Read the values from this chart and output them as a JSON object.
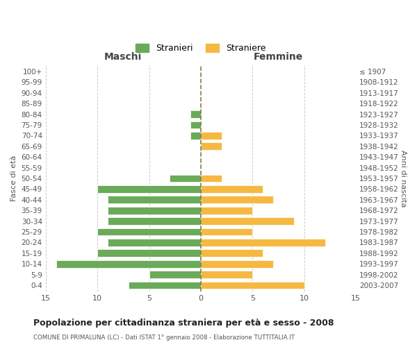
{
  "age_groups": [
    "100+",
    "95-99",
    "90-94",
    "85-89",
    "80-84",
    "75-79",
    "70-74",
    "65-69",
    "60-64",
    "55-59",
    "50-54",
    "45-49",
    "40-44",
    "35-39",
    "30-34",
    "25-29",
    "20-24",
    "15-19",
    "10-14",
    "5-9",
    "0-4"
  ],
  "birth_years": [
    "≤ 1907",
    "1908-1912",
    "1913-1917",
    "1918-1922",
    "1923-1927",
    "1928-1932",
    "1933-1937",
    "1938-1942",
    "1943-1947",
    "1948-1952",
    "1953-1957",
    "1958-1962",
    "1963-1967",
    "1968-1972",
    "1973-1977",
    "1978-1982",
    "1983-1987",
    "1988-1992",
    "1993-1997",
    "1998-2002",
    "2003-2007"
  ],
  "maschi": [
    0,
    0,
    0,
    0,
    1,
    1,
    1,
    0,
    0,
    0,
    3,
    10,
    9,
    9,
    9,
    10,
    9,
    10,
    14,
    5,
    7
  ],
  "femmine": [
    0,
    0,
    0,
    0,
    0,
    0,
    2,
    2,
    0,
    0,
    2,
    6,
    7,
    5,
    9,
    5,
    12,
    6,
    7,
    5,
    10
  ],
  "color_maschi": "#6aaa5a",
  "color_femmine": "#f5b942",
  "color_center_line": "#808040",
  "title": "Popolazione per cittadinanza straniera per età e sesso - 2008",
  "subtitle": "COMUNE DI PRIMALUNA (LC) - Dati ISTAT 1° gennaio 2008 - Elaborazione TUTTITALIA.IT",
  "ylabel_left": "Fasce di età",
  "ylabel_right": "Anni di nascita",
  "xlabel_maschi": "Maschi",
  "xlabel_femmine": "Femmine",
  "legend_maschi": "Stranieri",
  "legend_femmine": "Straniere",
  "xlim": 15,
  "background_color": "#ffffff",
  "grid_color": "#cccccc"
}
